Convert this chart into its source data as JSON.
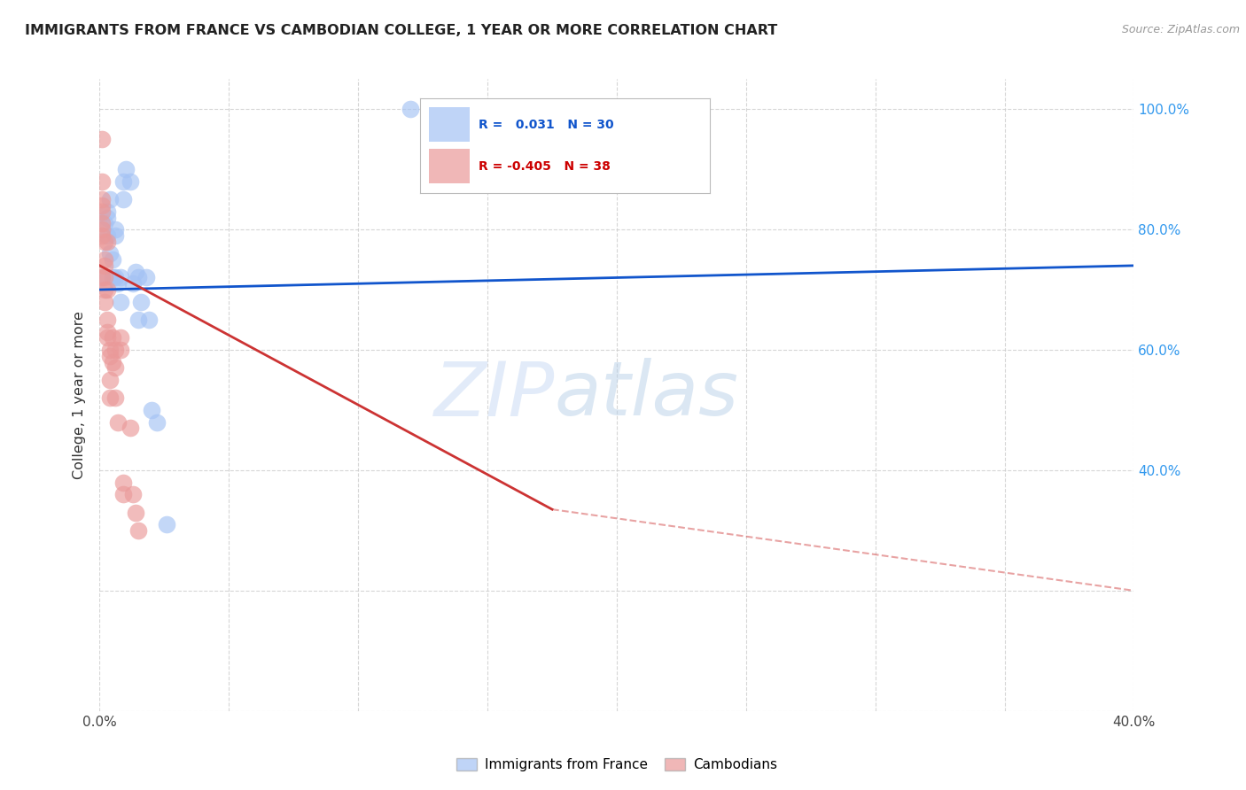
{
  "title": "IMMIGRANTS FROM FRANCE VS CAMBODIAN COLLEGE, 1 YEAR OR MORE CORRELATION CHART",
  "source": "Source: ZipAtlas.com",
  "ylabel": "College, 1 year or more",
  "legend1_r": "0.031",
  "legend1_n": "30",
  "legend2_r": "-0.405",
  "legend2_n": "38",
  "blue_color": "#a4c2f4",
  "pink_color": "#ea9999",
  "blue_line_color": "#1155cc",
  "pink_line_color": "#cc3333",
  "watermark_zip": "ZIP",
  "watermark_atlas": "atlas",
  "blue_scatter": [
    [
      0.001,
      0.72
    ],
    [
      0.002,
      0.81
    ],
    [
      0.003,
      0.83
    ],
    [
      0.003,
      0.79
    ],
    [
      0.003,
      0.82
    ],
    [
      0.004,
      0.76
    ],
    [
      0.004,
      0.85
    ],
    [
      0.005,
      0.75
    ],
    [
      0.005,
      0.72
    ],
    [
      0.006,
      0.72
    ],
    [
      0.006,
      0.8
    ],
    [
      0.006,
      0.79
    ],
    [
      0.007,
      0.71
    ],
    [
      0.008,
      0.68
    ],
    [
      0.008,
      0.72
    ],
    [
      0.009,
      0.88
    ],
    [
      0.009,
      0.85
    ],
    [
      0.01,
      0.9
    ],
    [
      0.012,
      0.88
    ],
    [
      0.013,
      0.71
    ],
    [
      0.014,
      0.73
    ],
    [
      0.015,
      0.72
    ],
    [
      0.015,
      0.65
    ],
    [
      0.016,
      0.68
    ],
    [
      0.018,
      0.72
    ],
    [
      0.019,
      0.65
    ],
    [
      0.02,
      0.5
    ],
    [
      0.022,
      0.48
    ],
    [
      0.026,
      0.31
    ],
    [
      0.12,
      1.0
    ]
  ],
  "pink_scatter": [
    [
      0.001,
      0.95
    ],
    [
      0.001,
      0.88
    ],
    [
      0.001,
      0.85
    ],
    [
      0.001,
      0.84
    ],
    [
      0.001,
      0.83
    ],
    [
      0.001,
      0.81
    ],
    [
      0.001,
      0.8
    ],
    [
      0.001,
      0.79
    ],
    [
      0.001,
      0.72
    ],
    [
      0.002,
      0.78
    ],
    [
      0.002,
      0.75
    ],
    [
      0.002,
      0.74
    ],
    [
      0.002,
      0.72
    ],
    [
      0.002,
      0.7
    ],
    [
      0.002,
      0.68
    ],
    [
      0.003,
      0.78
    ],
    [
      0.003,
      0.7
    ],
    [
      0.003,
      0.65
    ],
    [
      0.003,
      0.63
    ],
    [
      0.003,
      0.62
    ],
    [
      0.004,
      0.6
    ],
    [
      0.004,
      0.59
    ],
    [
      0.004,
      0.55
    ],
    [
      0.004,
      0.52
    ],
    [
      0.005,
      0.62
    ],
    [
      0.005,
      0.58
    ],
    [
      0.006,
      0.6
    ],
    [
      0.006,
      0.57
    ],
    [
      0.006,
      0.52
    ],
    [
      0.007,
      0.48
    ],
    [
      0.008,
      0.62
    ],
    [
      0.008,
      0.6
    ],
    [
      0.009,
      0.38
    ],
    [
      0.009,
      0.36
    ],
    [
      0.012,
      0.47
    ],
    [
      0.013,
      0.36
    ],
    [
      0.014,
      0.33
    ],
    [
      0.015,
      0.3
    ]
  ],
  "xlim": [
    0,
    0.4
  ],
  "ylim": [
    0.0,
    1.05
  ],
  "blue_trend": [
    0.0,
    0.4,
    0.7,
    0.74
  ],
  "pink_trend_solid": [
    0.0,
    0.175,
    0.74,
    0.335
  ],
  "pink_trend_dash": [
    0.175,
    0.4,
    0.335,
    0.2
  ],
  "background_color": "#ffffff",
  "grid_color": "#cccccc"
}
